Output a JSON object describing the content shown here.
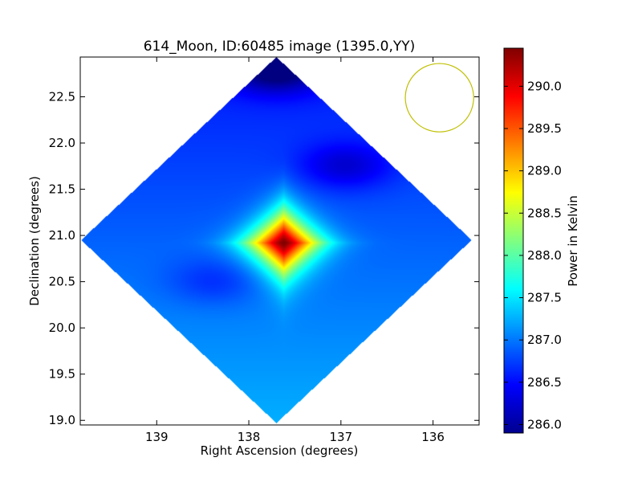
{
  "chart_data": {
    "type": "heatmap",
    "title": "614_Moon, ID:60485 image (1395.0,YY)",
    "xlabel": "Right Ascension (degrees)",
    "ylabel": "Declination (degrees)",
    "xlim": [
      139.83,
      135.5
    ],
    "ylim": [
      18.95,
      22.93
    ],
    "x_ticks": [
      139,
      138,
      137,
      136
    ],
    "x_tick_labels": [
      "139",
      "138",
      "137",
      "136"
    ],
    "y_ticks": [
      19.0,
      19.5,
      20.0,
      20.5,
      21.0,
      21.5,
      22.0,
      22.5
    ],
    "y_tick_labels": [
      "19.0",
      "19.5",
      "20.0",
      "20.5",
      "21.0",
      "21.5",
      "22.0",
      "22.5"
    ],
    "colormap": "jet",
    "colorbar": {
      "label": "Power in Kelvin",
      "range": [
        285.9,
        290.45
      ],
      "ticks": [
        286.0,
        286.5,
        287.0,
        287.5,
        288.0,
        288.5,
        289.0,
        289.5,
        290.0
      ],
      "tick_labels": [
        "286.0",
        "286.5",
        "287.0",
        "287.5",
        "288.0",
        "288.5",
        "289.0",
        "289.5",
        "290.0"
      ]
    },
    "map": {
      "footprint": "diamond",
      "center": [
        137.7,
        20.95
      ],
      "half_width_ra": 2.12,
      "half_height_dec": 1.98,
      "background_value": 286.9,
      "peak": {
        "ra": 137.62,
        "dec": 20.92,
        "value": 290.45
      },
      "cold_spots": [
        {
          "ra": 137.7,
          "dec": 22.8,
          "value": 286.0
        },
        {
          "ra": 136.95,
          "dec": 21.75,
          "value": 286.4
        },
        {
          "ra": 138.38,
          "dec": 20.5,
          "value": 286.6
        }
      ]
    },
    "beam_circle": {
      "ra": 135.93,
      "dec": 22.49,
      "radius_deg": 0.37,
      "color": "#bfbf00"
    }
  }
}
